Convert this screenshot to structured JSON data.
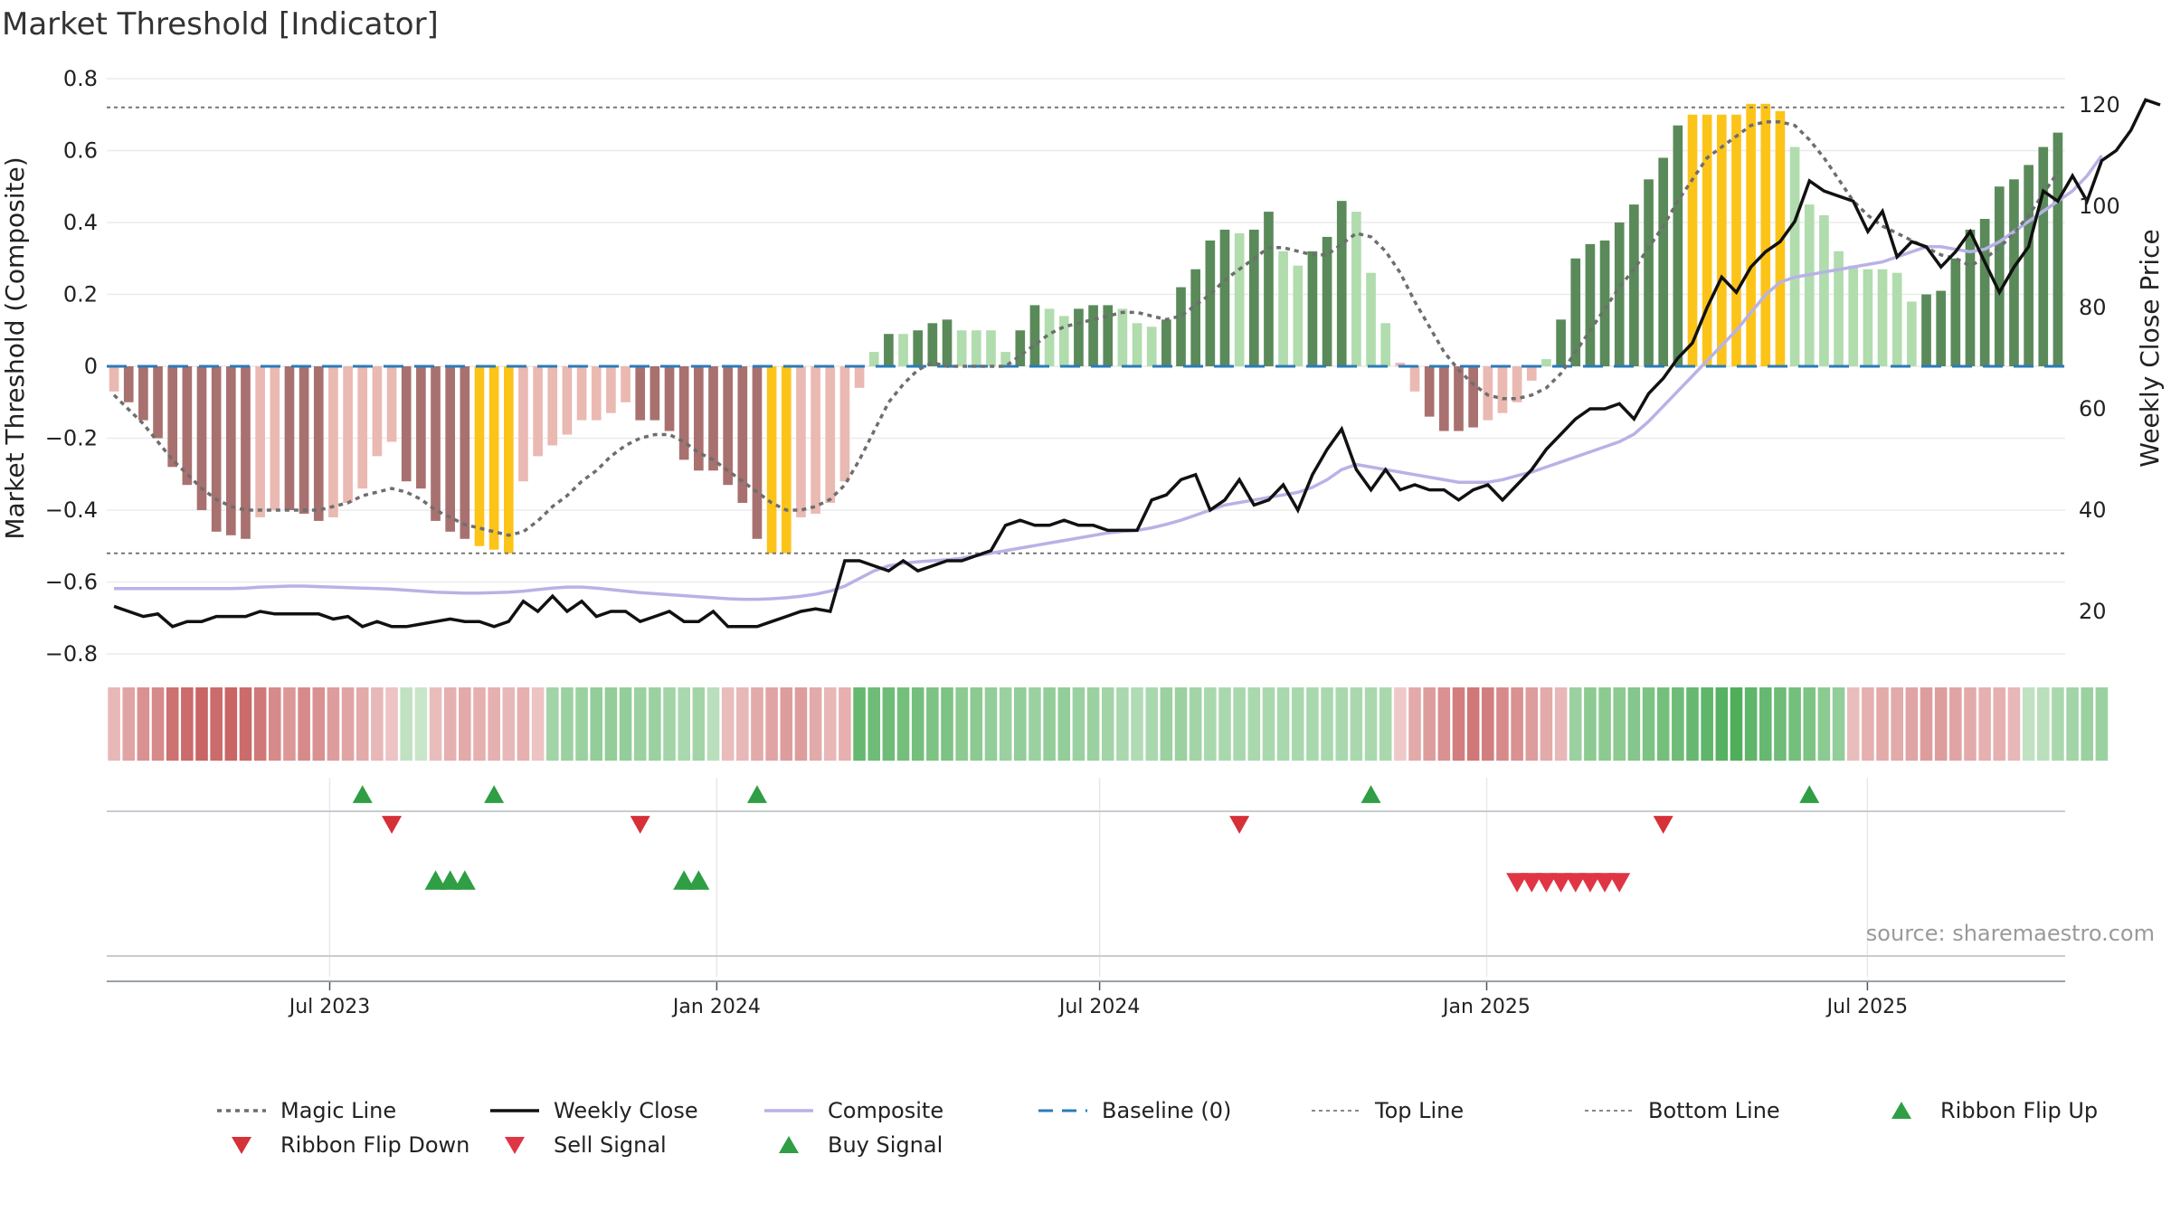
{
  "title": "Market Threshold [Indicator]",
  "source": "source: sharemaestro.com",
  "colors": {
    "magic": "#6e6e6e",
    "close": "#111111",
    "composite": "#b8b2e6",
    "baseline": "#2b7bb9",
    "threshold": "#777777",
    "gold": "#fcc419",
    "strong_pos": "#5a8a5a",
    "weak_pos": "#b1dcae",
    "strong_neg": "#a8716f",
    "weak_neg": "#eab9b2",
    "buy": "#2f9e44",
    "sell": "#e03545"
  },
  "chart_data": {
    "type": "bar",
    "title": "Market Threshold [Indicator]",
    "ylabel": "Market Threshold (Composite)",
    "y2label": "Weekly Close Price",
    "ylim": [
      -0.8,
      0.8
    ],
    "yticks": [
      0.8,
      0.6,
      0.4,
      0.2,
      0,
      -0.2,
      -0.4,
      -0.6,
      -0.8
    ],
    "ytick_labels": [
      "0.8",
      "0.6",
      "0.4",
      "0.2",
      "0",
      "−0.2",
      "−0.4",
      "−0.6",
      "−0.8"
    ],
    "y2lim": [
      10,
      130
    ],
    "y2ticks": [
      20,
      40,
      60,
      80,
      100,
      120
    ],
    "x_start": "2023-03-17",
    "x_end": "2025-10-03",
    "date_ticks": [
      {
        "date": "2023-07-01",
        "label": "Jul 2023"
      },
      {
        "date": "2024-01-01",
        "label": "Jan 2024"
      },
      {
        "date": "2024-07-01",
        "label": "Jul 2024"
      },
      {
        "date": "2025-01-01",
        "label": "Jan 2025"
      },
      {
        "date": "2025-07-01",
        "label": "Jul 2025"
      }
    ],
    "top_line": 0.72,
    "bottom_line": -0.52,
    "baseline": 0,
    "composite_bars": [
      -0.07,
      -0.1,
      -0.15,
      -0.2,
      -0.28,
      -0.33,
      -0.4,
      -0.46,
      -0.47,
      -0.48,
      -0.42,
      -0.4,
      -0.4,
      -0.41,
      -0.43,
      -0.42,
      -0.38,
      -0.34,
      -0.25,
      -0.21,
      -0.32,
      -0.34,
      -0.43,
      -0.46,
      -0.48,
      -0.5,
      -0.51,
      -0.52,
      -0.32,
      -0.25,
      -0.22,
      -0.19,
      -0.15,
      -0.15,
      -0.13,
      -0.1,
      -0.15,
      -0.15,
      -0.18,
      -0.26,
      -0.29,
      -0.29,
      -0.33,
      -0.38,
      -0.48,
      -0.52,
      -0.52,
      -0.42,
      -0.41,
      -0.38,
      -0.32,
      -0.06,
      0.04,
      0.09,
      0.09,
      0.1,
      0.12,
      0.13,
      0.1,
      0.1,
      0.1,
      0.04,
      0.1,
      0.17,
      0.16,
      0.14,
      0.16,
      0.17,
      0.17,
      0.16,
      0.12,
      0.11,
      0.13,
      0.22,
      0.27,
      0.35,
      0.38,
      0.37,
      0.38,
      0.43,
      0.32,
      0.28,
      0.32,
      0.36,
      0.46,
      0.43,
      0.26,
      0.12,
      0.01,
      -0.07,
      -0.14,
      -0.18,
      -0.18,
      -0.17,
      -0.15,
      -0.13,
      -0.1,
      -0.04,
      0.02,
      0.13,
      0.3,
      0.34,
      0.35,
      0.4,
      0.45,
      0.52,
      0.58,
      0.67,
      0.7,
      0.7,
      0.7,
      0.7,
      0.73,
      0.73,
      0.71,
      0.61,
      0.45,
      0.42,
      0.32,
      0.28,
      0.27,
      0.27,
      0.26,
      0.18,
      0.2,
      0.21,
      0.3,
      0.38,
      0.41,
      0.5,
      0.52,
      0.56,
      0.61,
      0.65
    ],
    "bar_styles": [
      "wn",
      "sn",
      "sn",
      "sn",
      "sn",
      "sn",
      "sn",
      "sn",
      "sn",
      "sn",
      "wn",
      "wn",
      "sn",
      "sn",
      "sn",
      "wn",
      "wn",
      "wn",
      "wn",
      "wn",
      "sn",
      "sn",
      "sn",
      "sn",
      "sn",
      "gd",
      "gd",
      "gd",
      "wn",
      "wn",
      "wn",
      "wn",
      "wn",
      "wn",
      "wn",
      "wn",
      "sn",
      "sn",
      "sn",
      "sn",
      "sn",
      "sn",
      "sn",
      "sn",
      "sn",
      "gd",
      "gd",
      "wn",
      "wn",
      "wn",
      "wn",
      "wn",
      "wp",
      "sp",
      "wp",
      "sp",
      "sp",
      "sp",
      "wp",
      "wp",
      "wp",
      "wp",
      "sp",
      "sp",
      "wp",
      "wp",
      "sp",
      "sp",
      "sp",
      "wp",
      "wp",
      "wp",
      "sp",
      "sp",
      "sp",
      "sp",
      "sp",
      "wp",
      "sp",
      "sp",
      "wp",
      "wp",
      "sp",
      "sp",
      "sp",
      "wp",
      "wp",
      "wp",
      "wn",
      "wn",
      "sn",
      "sn",
      "sn",
      "sn",
      "wn",
      "wn",
      "wn",
      "wn",
      "wp",
      "sp",
      "sp",
      "sp",
      "sp",
      "sp",
      "sp",
      "sp",
      "sp",
      "sp",
      "gd",
      "gd",
      "gd",
      "gd",
      "gd",
      "gd",
      "gd",
      "wp",
      "wp",
      "wp",
      "wp",
      "wp",
      "wp",
      "wp",
      "wp",
      "wp",
      "sp",
      "sp",
      "sp",
      "sp",
      "sp",
      "sp",
      "sp",
      "sp",
      "sp",
      "sp"
    ],
    "magic_line": [
      -0.08,
      -0.12,
      -0.16,
      -0.21,
      -0.26,
      -0.3,
      -0.34,
      -0.37,
      -0.39,
      -0.4,
      -0.4,
      -0.4,
      -0.4,
      -0.4,
      -0.4,
      -0.39,
      -0.38,
      -0.36,
      -0.35,
      -0.34,
      -0.35,
      -0.37,
      -0.4,
      -0.42,
      -0.44,
      -0.45,
      -0.46,
      -0.47,
      -0.46,
      -0.43,
      -0.39,
      -0.36,
      -0.32,
      -0.29,
      -0.25,
      -0.22,
      -0.2,
      -0.19,
      -0.19,
      -0.21,
      -0.24,
      -0.26,
      -0.29,
      -0.32,
      -0.35,
      -0.38,
      -0.4,
      -0.4,
      -0.39,
      -0.37,
      -0.33,
      -0.26,
      -0.18,
      -0.1,
      -0.05,
      -0.01,
      0.01,
      0.0,
      0.0,
      0.0,
      0.0,
      0.0,
      0.03,
      0.06,
      0.09,
      0.11,
      0.12,
      0.13,
      0.14,
      0.15,
      0.15,
      0.14,
      0.13,
      0.14,
      0.17,
      0.2,
      0.24,
      0.27,
      0.3,
      0.33,
      0.33,
      0.32,
      0.31,
      0.31,
      0.34,
      0.37,
      0.36,
      0.32,
      0.26,
      0.18,
      0.11,
      0.04,
      -0.01,
      -0.05,
      -0.08,
      -0.09,
      -0.09,
      -0.08,
      -0.06,
      -0.02,
      0.04,
      0.1,
      0.16,
      0.22,
      0.27,
      0.33,
      0.39,
      0.46,
      0.52,
      0.58,
      0.61,
      0.64,
      0.67,
      0.68,
      0.68,
      0.67,
      0.63,
      0.58,
      0.52,
      0.46,
      0.42,
      0.39,
      0.37,
      0.35,
      0.33,
      0.31,
      0.3,
      0.28,
      0.3,
      0.33,
      0.37,
      0.42,
      0.48,
      0.54
    ],
    "weekly_close": [
      21,
      20,
      19,
      19.5,
      17,
      18,
      18,
      19,
      19,
      19,
      20,
      19.5,
      19.5,
      19.5,
      19.5,
      18.5,
      19,
      17,
      18,
      17,
      17,
      17.5,
      18,
      18.5,
      18,
      18,
      17,
      18,
      22,
      20,
      23,
      20,
      22,
      19,
      20,
      20,
      18,
      19,
      20,
      18,
      18,
      20,
      17,
      17,
      17,
      18,
      19,
      20,
      20.5,
      20,
      30,
      30,
      29,
      28,
      30,
      28,
      29,
      30,
      30,
      31,
      32,
      37,
      38,
      37,
      37,
      38,
      37,
      37,
      36,
      36,
      36,
      42,
      43,
      46,
      47,
      40,
      42,
      46,
      41,
      42,
      45,
      40,
      47,
      52,
      56,
      48,
      44,
      48,
      44,
      45,
      44,
      44,
      42,
      44,
      45,
      42,
      45,
      48,
      52,
      55,
      58,
      60,
      60,
      61,
      58,
      63,
      66,
      70,
      73,
      80,
      86,
      83,
      88,
      91,
      93,
      97,
      105,
      103,
      102,
      101,
      95,
      99,
      90,
      93,
      92,
      88,
      91,
      95,
      89,
      83,
      88,
      92,
      103,
      101,
      106,
      101,
      109,
      111,
      115,
      121,
      120
    ],
    "composite_line": [
      24.5,
      24.5,
      24.5,
      24.5,
      24.5,
      24.5,
      24.5,
      24.5,
      24.5,
      24.6,
      24.8,
      24.9,
      25.0,
      25.0,
      24.9,
      24.8,
      24.7,
      24.6,
      24.5,
      24.4,
      24.2,
      24.0,
      23.8,
      23.7,
      23.6,
      23.6,
      23.7,
      23.8,
      24.0,
      24.3,
      24.6,
      24.8,
      24.8,
      24.6,
      24.3,
      24.0,
      23.7,
      23.5,
      23.3,
      23.1,
      22.9,
      22.7,
      22.5,
      22.4,
      22.4,
      22.5,
      22.7,
      23.0,
      23.4,
      24.0,
      25.0,
      26.5,
      28.0,
      29.0,
      29.5,
      29.8,
      30.0,
      30.2,
      30.5,
      31.0,
      31.5,
      32.0,
      32.5,
      33.0,
      33.5,
      34.0,
      34.5,
      35.0,
      35.5,
      35.8,
      36.0,
      36.5,
      37.2,
      38.0,
      39.0,
      40.0,
      41.0,
      41.5,
      42.0,
      42.5,
      43.0,
      43.5,
      44.5,
      46.0,
      48.0,
      49.0,
      48.5,
      48.0,
      47.5,
      47.0,
      46.5,
      46.0,
      45.5,
      45.5,
      45.5,
      46.0,
      46.8,
      47.5,
      48.5,
      49.5,
      50.5,
      51.5,
      52.5,
      53.5,
      55.0,
      57.5,
      60.5,
      63.5,
      66.5,
      69.5,
      72.5,
      75.5,
      79.0,
      82.5,
      85.0,
      86.0,
      86.5,
      87.0,
      87.5,
      88.0,
      88.5,
      89.0,
      90.0,
      91.0,
      92.0,
      92.0,
      91.5,
      91.0,
      91.5,
      93.0,
      95.0,
      97.0,
      99.0,
      101.0,
      103.0,
      106.0,
      110.0
    ],
    "ribbon_sentiment": [
      -0.25,
      -0.4,
      -0.55,
      -0.6,
      -0.8,
      -0.85,
      -0.9,
      -0.85,
      -0.9,
      -0.85,
      -0.75,
      -0.6,
      -0.5,
      -0.6,
      -0.55,
      -0.45,
      -0.4,
      -0.35,
      -0.25,
      -0.15,
      0.2,
      0.15,
      -0.2,
      -0.3,
      -0.35,
      -0.3,
      -0.3,
      -0.25,
      -0.3,
      -0.15,
      0.4,
      0.45,
      0.45,
      0.5,
      0.5,
      0.5,
      0.45,
      0.45,
      0.4,
      0.35,
      0.4,
      0.25,
      -0.2,
      -0.25,
      -0.35,
      -0.4,
      -0.45,
      -0.45,
      -0.35,
      -0.25,
      -0.3,
      0.8,
      0.75,
      0.75,
      0.7,
      0.7,
      0.65,
      0.65,
      0.55,
      0.55,
      0.5,
      0.45,
      0.5,
      0.45,
      0.5,
      0.5,
      0.45,
      0.45,
      0.4,
      0.35,
      0.3,
      0.35,
      0.45,
      0.45,
      0.4,
      0.35,
      0.35,
      0.35,
      0.35,
      0.35,
      0.35,
      0.35,
      0.35,
      0.35,
      0.35,
      0.35,
      0.35,
      0.35,
      -0.1,
      -0.35,
      -0.45,
      -0.55,
      -0.7,
      -0.75,
      -0.7,
      -0.6,
      -0.55,
      -0.45,
      -0.35,
      -0.25,
      0.45,
      0.55,
      0.55,
      0.55,
      0.6,
      0.65,
      0.7,
      0.75,
      0.8,
      0.85,
      0.9,
      0.95,
      0.85,
      0.8,
      0.75,
      0.7,
      0.65,
      0.55,
      0.5,
      -0.2,
      -0.3,
      -0.35,
      -0.35,
      -0.4,
      -0.45,
      -0.45,
      -0.4,
      -0.35,
      -0.3,
      -0.3,
      -0.25,
      0.2,
      0.25,
      0.35,
      0.4,
      0.45,
      0.45
    ],
    "ribbon_flip_up": [
      17,
      26,
      44,
      86,
      116
    ],
    "ribbon_flip_down": [
      19,
      36,
      77,
      106
    ],
    "buy_signal": [
      22,
      23,
      24,
      39,
      40
    ],
    "sell_signal": [
      96,
      97,
      98,
      99,
      100,
      101,
      102,
      103
    ]
  },
  "legend": [
    {
      "label": "Magic Line",
      "kind": "dotted",
      "color": "#6e6e6e"
    },
    {
      "label": "Weekly Close",
      "kind": "solid",
      "color": "#111111"
    },
    {
      "label": "Composite",
      "kind": "solid-light",
      "color": "#b8b2e6"
    },
    {
      "label": "Baseline (0)",
      "kind": "dashed",
      "color": "#2b7bb9"
    },
    {
      "label": "Top Line",
      "kind": "dotted-fine",
      "color": "#888888"
    },
    {
      "label": "Bottom Line",
      "kind": "dotted-fine",
      "color": "#888888"
    },
    {
      "label": "Ribbon Flip Up",
      "kind": "triangle-up",
      "color": "#2f9e44"
    },
    {
      "label": "Ribbon Flip Down",
      "kind": "triangle-down",
      "color": "#d63038"
    },
    {
      "label": "Sell Signal",
      "kind": "triangle-down",
      "color": "#e03545"
    },
    {
      "label": "Buy Signal",
      "kind": "triangle-up",
      "color": "#2f9e44"
    }
  ]
}
